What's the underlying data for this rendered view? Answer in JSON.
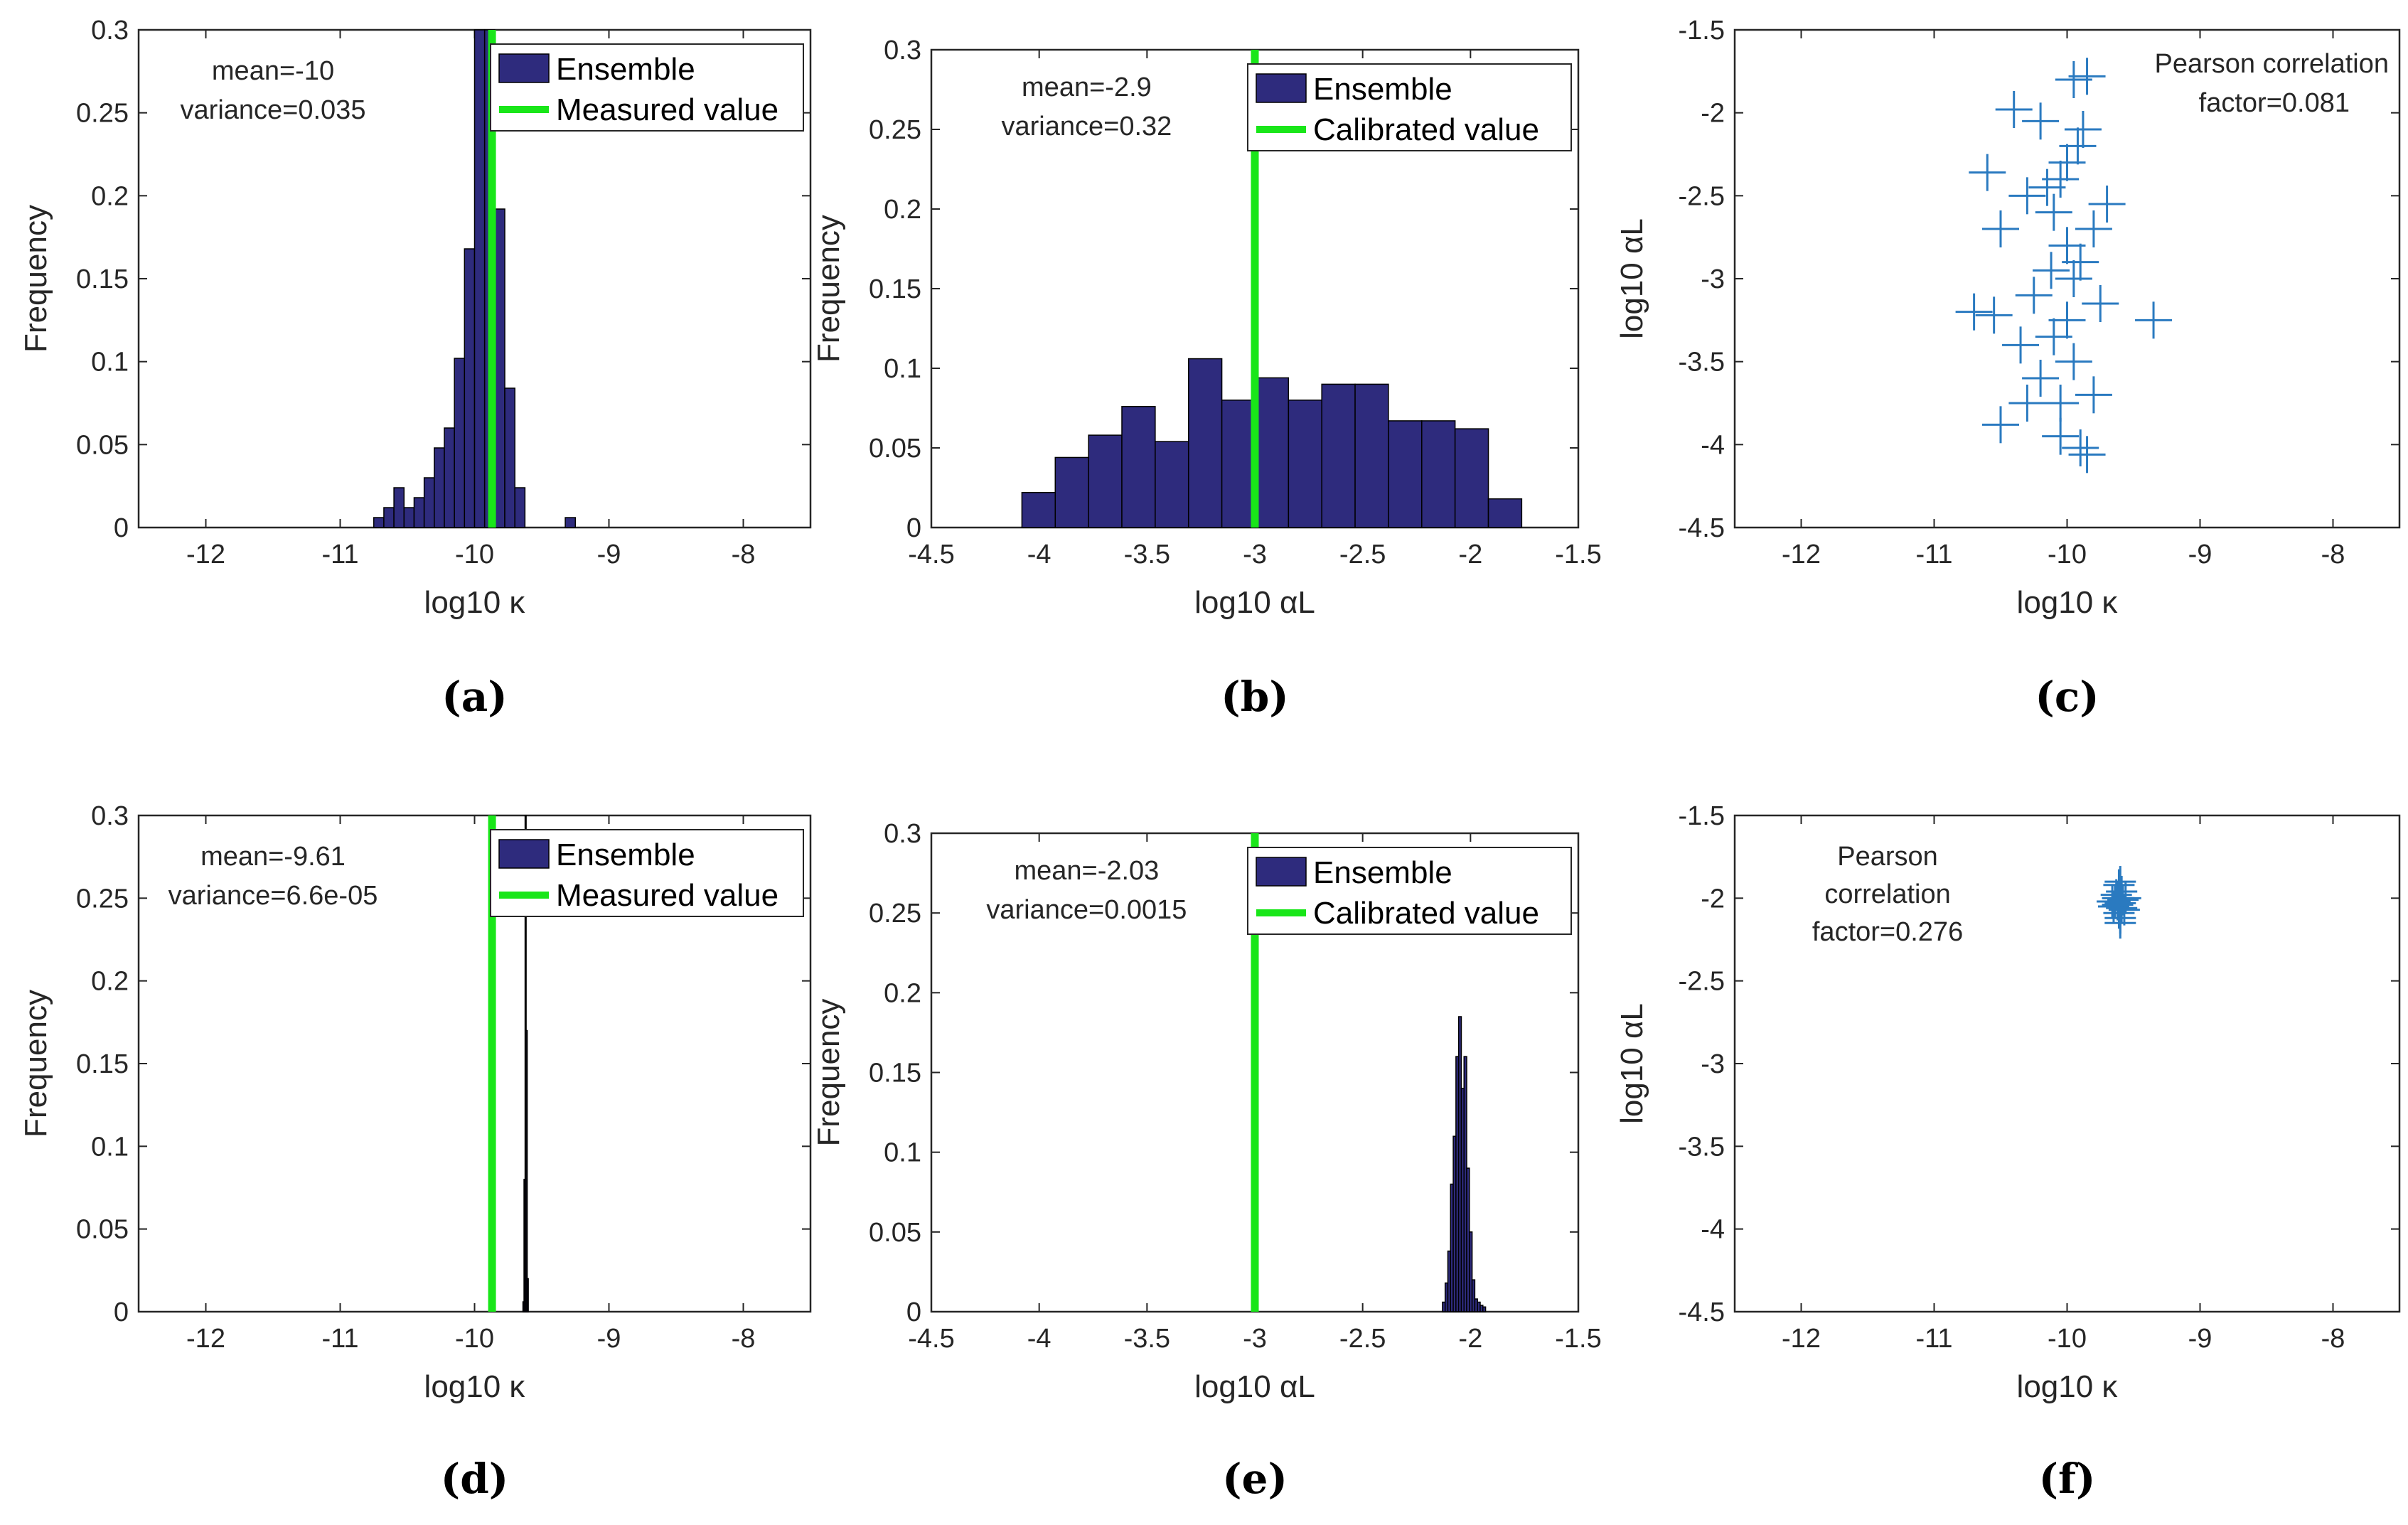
{
  "colors": {
    "bar": "#2E2B7D",
    "line": "#19E619",
    "scatter": "#2A7AC0",
    "axis": "#262626"
  },
  "legend_series": {
    "ensemble": "Ensemble",
    "measured": "Measured value",
    "calibrated": "Calibrated value"
  },
  "chart_data": [
    {
      "id": "a",
      "type": "bar",
      "caption": "(a)",
      "xlabel": "log10 κ",
      "ylabel": "Frequency",
      "xlim": [
        -12.5,
        -7.5
      ],
      "ylim": [
        0,
        0.3
      ],
      "xticks": [
        "-12",
        "-11",
        "-10",
        "-9",
        "-8"
      ],
      "yticks": [
        "0",
        "0.05",
        "0.1",
        "0.15",
        "0.2",
        "0.25",
        "0.3"
      ],
      "stats": [
        "mean=-10",
        "variance=0.035"
      ],
      "reference_line": {
        "label": "Measured value",
        "x": -9.87
      },
      "bins": {
        "start": -10.75,
        "width": 0.075,
        "values": [
          0.006,
          0.012,
          0.024,
          0.012,
          0.018,
          0.03,
          0.048,
          0.06,
          0.102,
          0.168,
          0.3,
          0.3,
          0.192,
          0.084,
          0.024,
          0,
          0,
          0,
          0,
          0.006
        ]
      }
    },
    {
      "id": "b",
      "type": "bar",
      "caption": "(b)",
      "xlabel": "log10 αL",
      "ylabel": "Frequency",
      "xlim": [
        -4.5,
        -1.5
      ],
      "ylim": [
        0,
        0.3
      ],
      "xticks": [
        "-4.5",
        "-4",
        "-3.5",
        "-3",
        "-2.5",
        "-2",
        "-1.5"
      ],
      "yticks": [
        "0",
        "0.05",
        "0.1",
        "0.15",
        "0.2",
        "0.25",
        "0.3"
      ],
      "stats": [
        "mean=-2.9",
        "variance=0.32"
      ],
      "reference_line": {
        "label": "Calibrated value",
        "x": -3.0
      },
      "bins": {
        "start": -4.08,
        "width": 0.1545,
        "values": [
          0.022,
          0.044,
          0.058,
          0.076,
          0.054,
          0.106,
          0.08,
          0.094,
          0.08,
          0.09,
          0.09,
          0.067,
          0.067,
          0.062,
          0.018
        ]
      }
    },
    {
      "id": "c",
      "type": "scatter",
      "caption": "(c)",
      "xlabel": "log10 κ",
      "ylabel": "log10 αL",
      "xlim": [
        -12.5,
        -7.5
      ],
      "ylim": [
        -4.5,
        -1.5
      ],
      "xticks": [
        "-12",
        "-11",
        "-10",
        "-9",
        "-8"
      ],
      "yticks": [
        "-4.5",
        "-4",
        "-3.5",
        "-3",
        "-2.5",
        "-2",
        "-1.5"
      ],
      "annotation": [
        "Pearson correlation",
        "factor=0.081"
      ],
      "points": [
        [
          -10.4,
          -1.98
        ],
        [
          -10.2,
          -2.05
        ],
        [
          -9.95,
          -1.8
        ],
        [
          -9.85,
          -1.78
        ],
        [
          -10.05,
          -2.4
        ],
        [
          -10.6,
          -2.36
        ],
        [
          -10.3,
          -2.5
        ],
        [
          -10.15,
          -2.45
        ],
        [
          -9.7,
          -2.55
        ],
        [
          -10.1,
          -2.6
        ],
        [
          -10.5,
          -2.7
        ],
        [
          -10.0,
          -2.8
        ],
        [
          -9.9,
          -2.9
        ],
        [
          -10.7,
          -3.2
        ],
        [
          -10.55,
          -3.22
        ],
        [
          -10.25,
          -3.1
        ],
        [
          -9.75,
          -3.15
        ],
        [
          -9.35,
          -3.25
        ],
        [
          -10.1,
          -3.35
        ],
        [
          -10.35,
          -3.4
        ],
        [
          -9.95,
          -3.5
        ],
        [
          -10.2,
          -3.6
        ],
        [
          -10.5,
          -3.88
        ],
        [
          -9.9,
          -4.02
        ],
        [
          -9.85,
          -4.06
        ],
        [
          -10.05,
          -3.75
        ],
        [
          -9.8,
          -3.7
        ],
        [
          -10.0,
          -3.25
        ],
        [
          -9.92,
          -2.2
        ],
        [
          -9.88,
          -2.1
        ],
        [
          -10.12,
          -2.95
        ],
        [
          -9.8,
          -2.7
        ],
        [
          -10.3,
          -3.75
        ],
        [
          -10.05,
          -3.95
        ],
        [
          -9.95,
          -3.0
        ],
        [
          -10.0,
          -2.3
        ]
      ]
    },
    {
      "id": "d",
      "type": "bar",
      "caption": "(d)",
      "xlabel": "log10 κ",
      "ylabel": "Frequency",
      "xlim": [
        -12.5,
        -7.5
      ],
      "ylim": [
        0,
        0.3
      ],
      "xticks": [
        "-12",
        "-11",
        "-10",
        "-9",
        "-8"
      ],
      "yticks": [
        "0",
        "0.05",
        "0.1",
        "0.15",
        "0.2",
        "0.25",
        "0.3"
      ],
      "stats": [
        "mean=-9.61",
        "variance=6.6e-05"
      ],
      "reference_line": {
        "label": "Measured value",
        "x": -9.87
      },
      "bins": {
        "start": -9.64,
        "width": 0.008,
        "values": [
          0.006,
          0.08,
          0.3,
          0.17,
          0.02
        ]
      }
    },
    {
      "id": "e",
      "type": "bar",
      "caption": "(e)",
      "xlabel": "log10 αL",
      "ylabel": "Frequency",
      "xlim": [
        -4.5,
        -1.5
      ],
      "ylim": [
        0,
        0.3
      ],
      "xticks": [
        "-4.5",
        "-4",
        "-3.5",
        "-3",
        "-2.5",
        "-2",
        "-1.5"
      ],
      "yticks": [
        "0",
        "0.05",
        "0.1",
        "0.15",
        "0.2",
        "0.25",
        "0.3"
      ],
      "stats": [
        "mean=-2.03",
        "variance=0.0015"
      ],
      "reference_line": {
        "label": "Calibrated value",
        "x": -3.0
      },
      "bins": {
        "start": -2.13,
        "width": 0.0125,
        "values": [
          0.006,
          0.018,
          0.038,
          0.08,
          0.11,
          0.16,
          0.185,
          0.14,
          0.16,
          0.09,
          0.05,
          0.02,
          0.008,
          0.006,
          0.004,
          0.003
        ]
      }
    },
    {
      "id": "f",
      "type": "scatter",
      "caption": "(f)",
      "xlabel": "log10 κ",
      "ylabel": "log10 αL",
      "xlim": [
        -12.5,
        -7.5
      ],
      "ylim": [
        -4.5,
        -1.5
      ],
      "xticks": [
        "-12",
        "-11",
        "-10",
        "-9",
        "-8"
      ],
      "yticks": [
        "-4.5",
        "-4",
        "-3.5",
        "-3",
        "-2.5",
        "-2",
        "-1.5"
      ],
      "annotation": [
        "Pearson",
        "correlation",
        "factor=0.276"
      ],
      "points": [
        [
          -9.62,
          -2.0
        ],
        [
          -9.6,
          -2.03
        ],
        [
          -9.58,
          -2.01
        ],
        [
          -9.65,
          -2.05
        ],
        [
          -9.61,
          -1.92
        ],
        [
          -9.6,
          -2.12
        ],
        [
          -9.63,
          -1.98
        ],
        [
          -9.57,
          -2.07
        ],
        [
          -9.64,
          -2.02
        ],
        [
          -9.59,
          -1.96
        ],
        [
          -9.61,
          -2.09
        ],
        [
          -9.62,
          -2.04
        ],
        [
          -9.6,
          -1.9
        ],
        [
          -9.6,
          -2.15
        ],
        [
          -9.56,
          -2.0
        ],
        [
          -9.66,
          -2.02
        ],
        [
          -9.61,
          -2.0
        ],
        [
          -9.59,
          -2.06
        ]
      ]
    }
  ]
}
